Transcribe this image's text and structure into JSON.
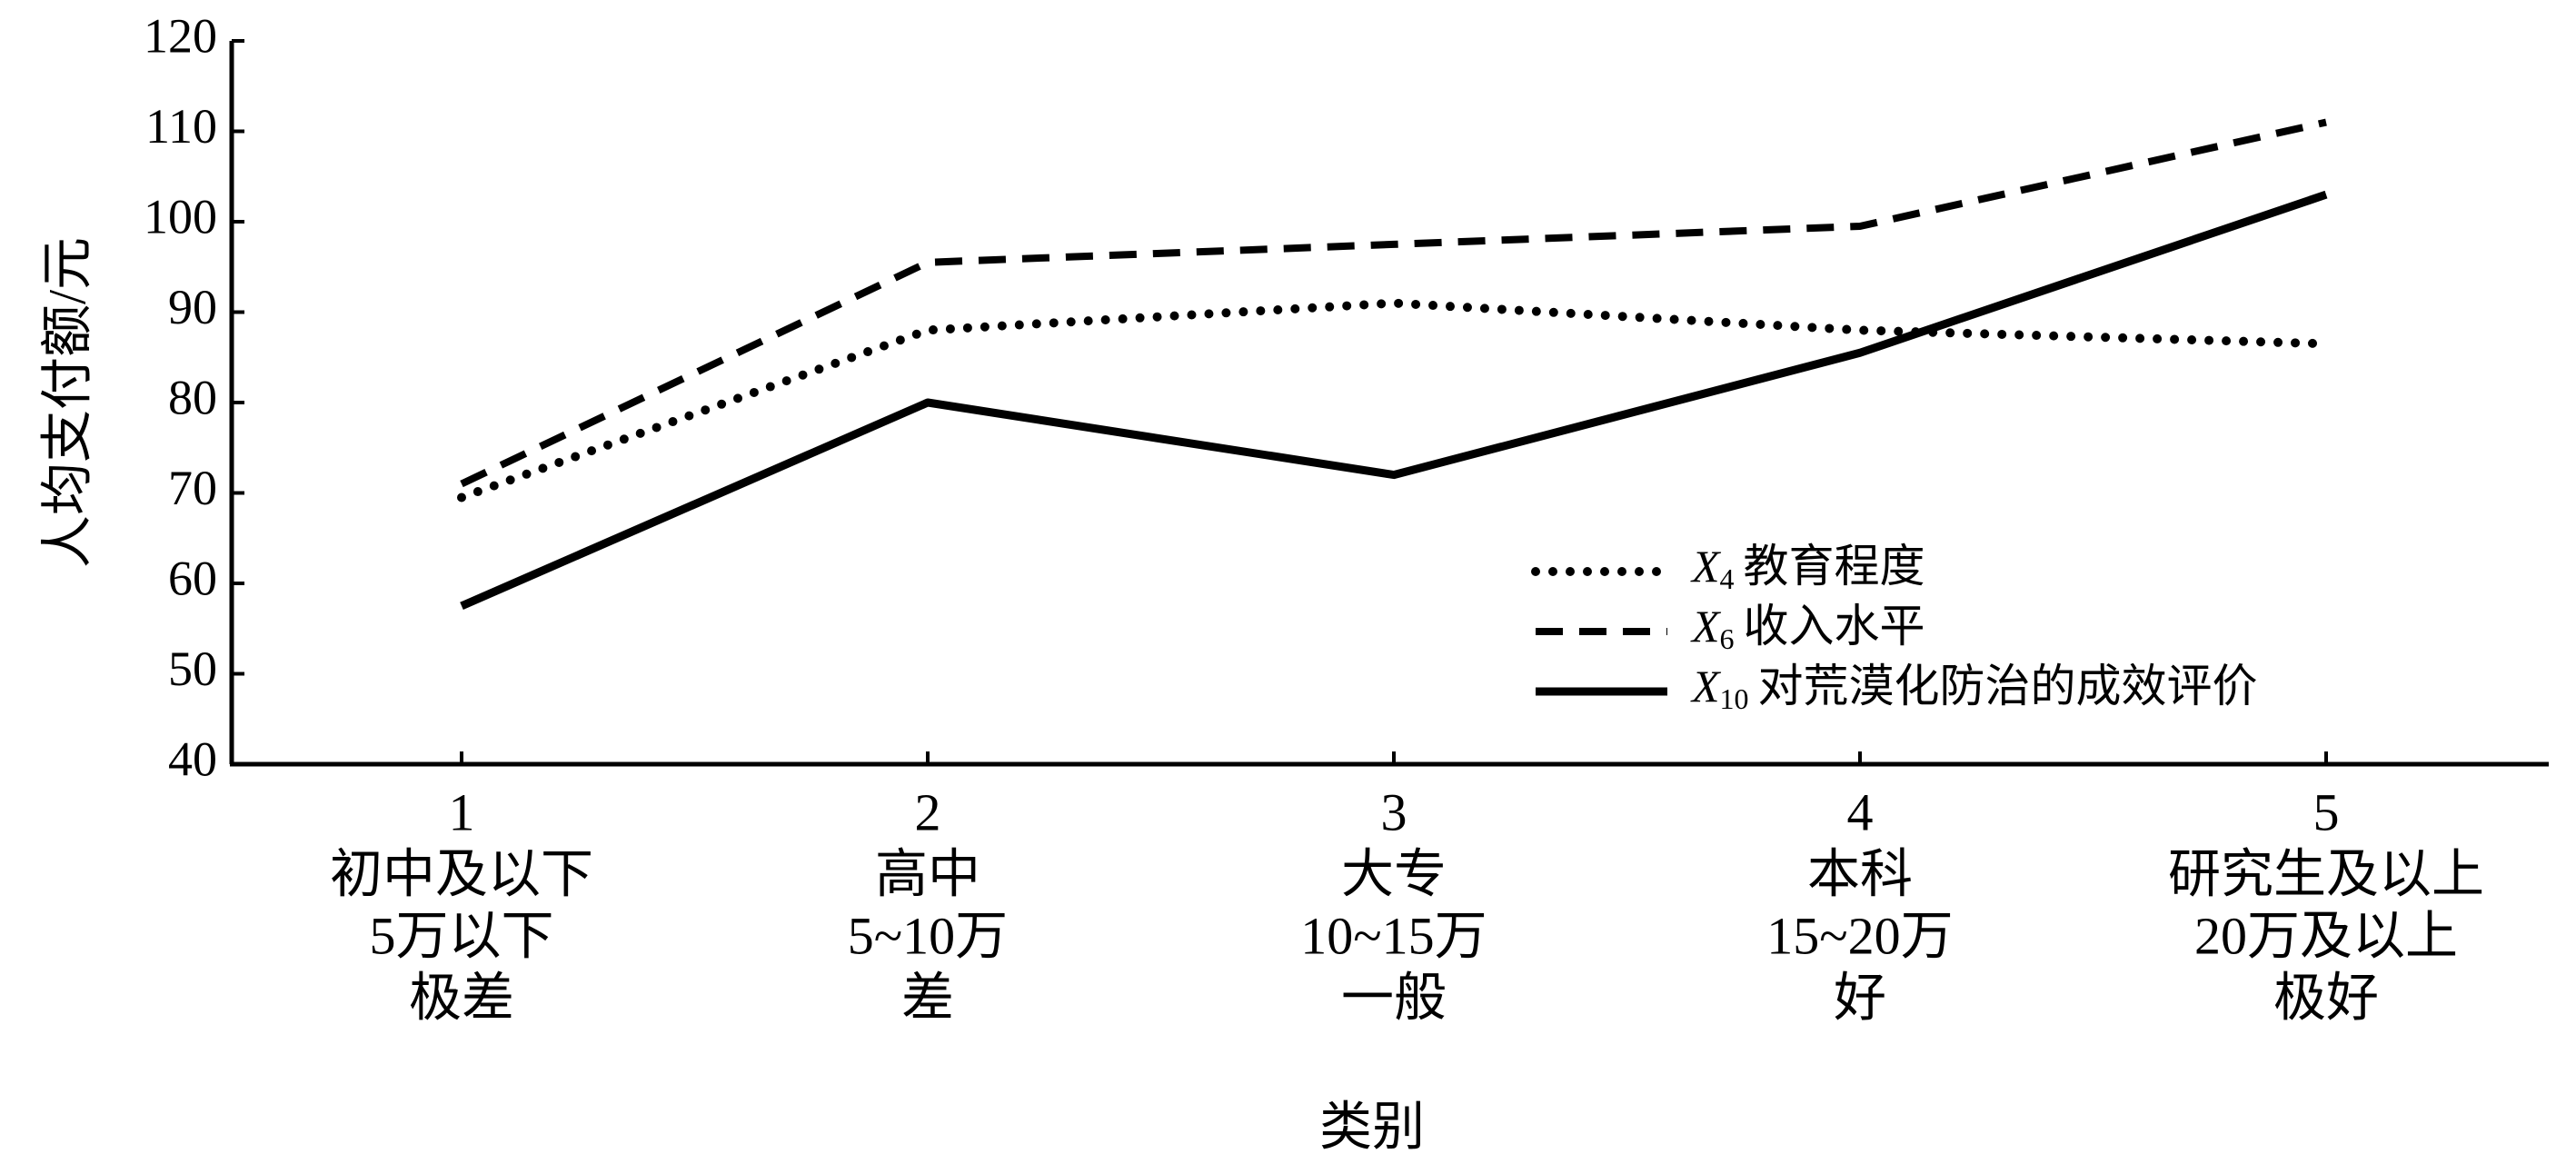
{
  "chart_data": {
    "type": "line",
    "ylabel": "人均支付额/元",
    "xlabel": "类别",
    "categories": [
      [
        "1",
        "初中及以下",
        "5万以下",
        "极差"
      ],
      [
        "2",
        "高中",
        "5~10万",
        "差"
      ],
      [
        "3",
        "大专",
        "10~15万",
        "一般"
      ],
      [
        "4",
        "本科",
        "15~20万",
        "好"
      ],
      [
        "5",
        "研究生及以上",
        "20万及以上",
        "极好"
      ]
    ],
    "ylim": [
      40,
      120
    ],
    "yticks": [
      40,
      50,
      60,
      70,
      80,
      90,
      100,
      110,
      120
    ],
    "grid": false,
    "legend": "center-right",
    "series": [
      {
        "symbol": "X",
        "subscript": "4",
        "name": "教育程度",
        "style": "dotted",
        "color": "#000000",
        "values": [
          69.5,
          88,
          91,
          88,
          86.5
        ]
      },
      {
        "symbol": "X",
        "subscript": "6",
        "name": "收入水平",
        "style": "dashed",
        "color": "#000000",
        "values": [
          71,
          95.5,
          97.5,
          99.5,
          111
        ]
      },
      {
        "symbol": "X",
        "subscript": "10",
        "name": "对荒漠化防治的成效评价",
        "style": "solid",
        "color": "#000000",
        "values": [
          57.5,
          80,
          72,
          85.5,
          103
        ]
      }
    ]
  }
}
